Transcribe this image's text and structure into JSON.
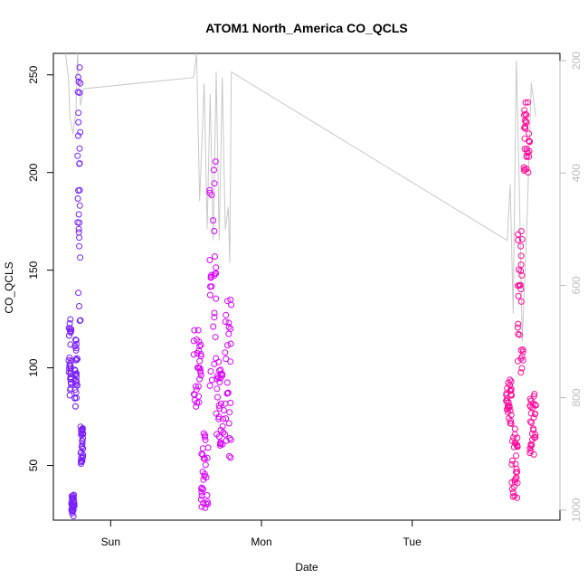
{
  "chart_data": {
    "type": "scatter",
    "title": "ATOM1 North_America CO_QCLS",
    "xlabel": "Date",
    "ylabel": "CO_QCLS",
    "x_tick_labels": [
      "Sun",
      "Mon",
      "Tue"
    ],
    "x_tick_days": [
      1,
      2,
      3
    ],
    "xlim_days": [
      0.62,
      3.98
    ],
    "ylim": [
      22,
      261
    ],
    "y_ticks": [
      50,
      100,
      150,
      200,
      250
    ],
    "y2_label": "",
    "y2_ticks": [
      200,
      400,
      600,
      800,
      1000
    ],
    "y2lim_reversed": [
      1018,
      187
    ],
    "grid": false,
    "marker": "open-circle",
    "color_scale": [
      "#6a00ff",
      "#b000ff",
      "#ff00ff",
      "#ff0080"
    ],
    "line_color": "#c8c8c8",
    "clusters": [
      {
        "name": "",
        "day_start": 0.72,
        "day_end": 0.82,
        "color": "#7a1fff",
        "ranges": [
          [
            85,
            125
          ],
          [
            24,
            35
          ],
          [
            80,
            115
          ],
          [
            120,
            255
          ],
          [
            50,
            70
          ]
        ]
      },
      {
        "name": "",
        "day_start": 1.55,
        "day_end": 1.8,
        "color": "#d800ff",
        "ranges": [
          [
            80,
            120
          ],
          [
            27,
            68
          ],
          [
            90,
            210
          ],
          [
            60,
            104
          ],
          [
            53,
            135
          ]
        ]
      },
      {
        "name": "",
        "day_start": 3.62,
        "day_end": 3.82,
        "color": "#ff0a9a",
        "ranges": [
          [
            70,
            95
          ],
          [
            33,
            70
          ],
          [
            95,
            175
          ],
          [
            200,
            240
          ],
          [
            55,
            88
          ]
        ]
      }
    ],
    "pressure_trace": [
      [
        0.7,
        187
      ],
      [
        0.72,
        230
      ],
      [
        0.73,
        300
      ],
      [
        0.75,
        330
      ],
      [
        0.77,
        290
      ],
      [
        0.78,
        187
      ],
      [
        0.8,
        280
      ],
      [
        0.82,
        250
      ],
      [
        1.55,
        230
      ],
      [
        1.57,
        187
      ],
      [
        1.59,
        450
      ],
      [
        1.62,
        240
      ],
      [
        1.64,
        500
      ],
      [
        1.66,
        260
      ],
      [
        1.68,
        520
      ],
      [
        1.7,
        220
      ],
      [
        1.72,
        520
      ],
      [
        1.74,
        230
      ],
      [
        1.76,
        500
      ],
      [
        1.78,
        460
      ],
      [
        1.79,
        560
      ],
      [
        1.8,
        220
      ],
      [
        3.63,
        520
      ],
      [
        3.65,
        420
      ],
      [
        3.67,
        650
      ],
      [
        3.69,
        200
      ],
      [
        3.71,
        420
      ],
      [
        3.73,
        700
      ],
      [
        3.76,
        500
      ],
      [
        3.79,
        240
      ],
      [
        3.82,
        300
      ]
    ]
  }
}
